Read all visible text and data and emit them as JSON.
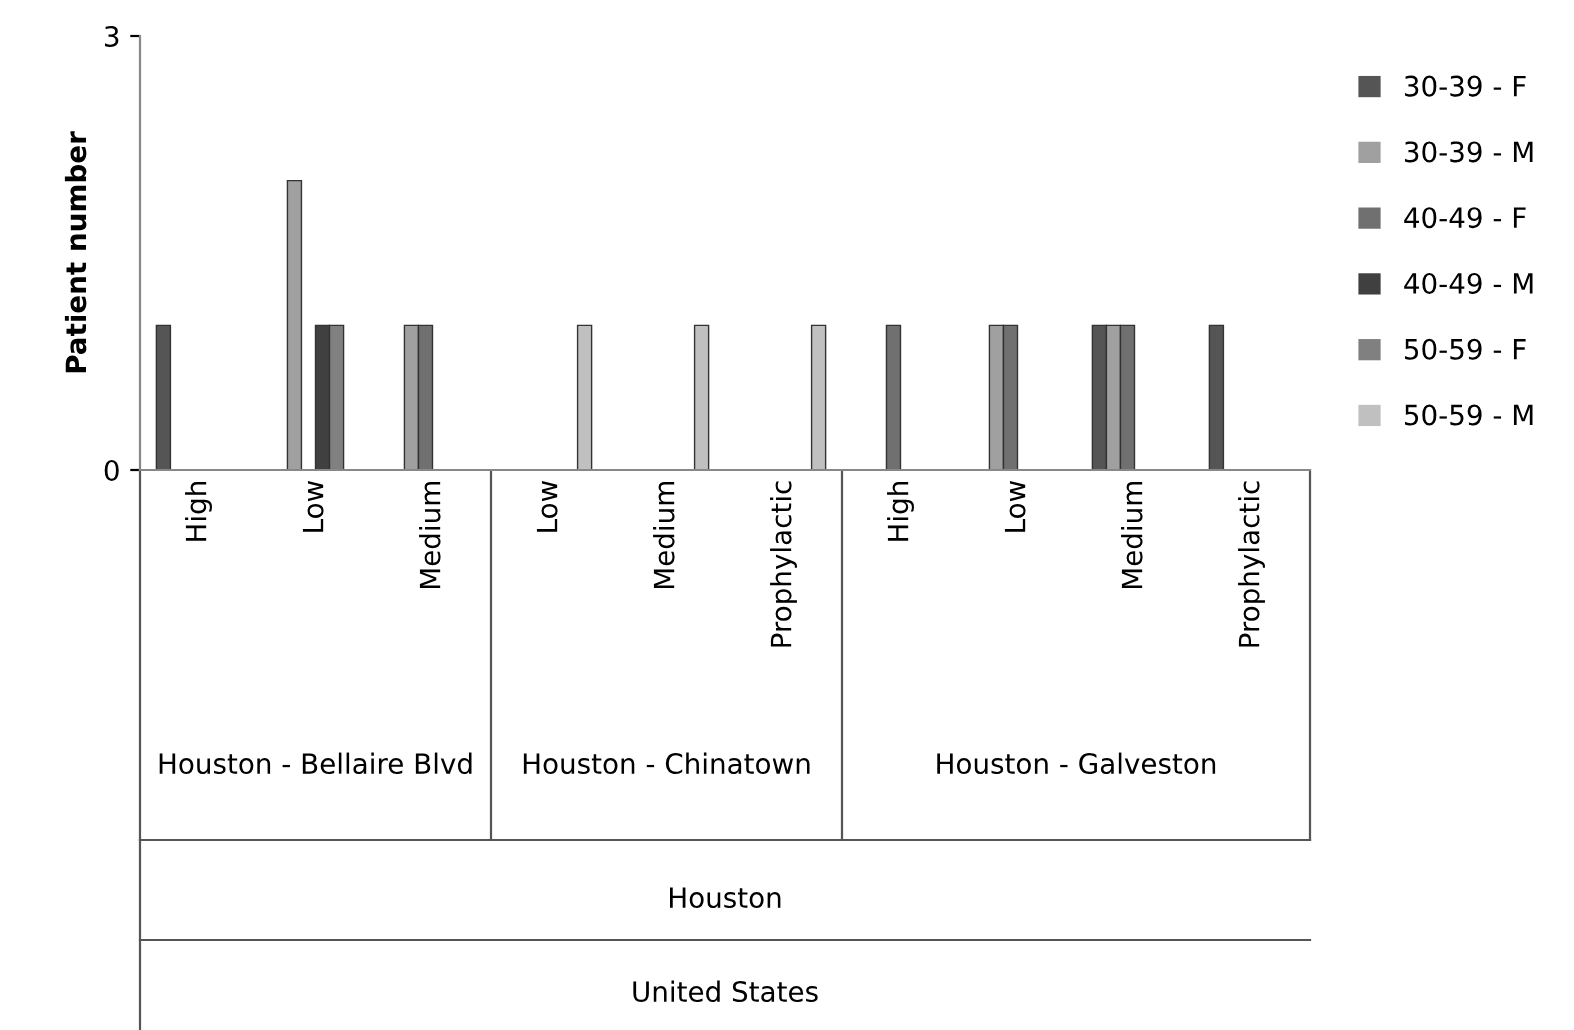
{
  "chart_data": {
    "type": "bar",
    "ylabel": "Patient number",
    "categories": [
      "High",
      "Low",
      "Medium",
      "Low",
      "Medium",
      "Prophylactic",
      "High",
      "Low",
      "Medium",
      "Prophylactic"
    ],
    "series": [
      {
        "name": "30-39 - F",
        "color": "#555555",
        "values": [
          1,
          null,
          null,
          null,
          null,
          null,
          null,
          null,
          1,
          1
        ]
      },
      {
        "name": "30-39 - M",
        "color": "#a0a0a0",
        "values": [
          null,
          2,
          1,
          null,
          null,
          null,
          null,
          1,
          1,
          null
        ]
      },
      {
        "name": "40-49 - F",
        "color": "#707070",
        "values": [
          null,
          null,
          1,
          null,
          null,
          null,
          1,
          1,
          1,
          null
        ]
      },
      {
        "name": "40-49 - M",
        "color": "#404040",
        "values": [
          null,
          1,
          null,
          null,
          null,
          null,
          null,
          null,
          null,
          null
        ]
      },
      {
        "name": "50-59 - F",
        "color": "#808080",
        "values": [
          null,
          1,
          null,
          null,
          null,
          null,
          null,
          null,
          null,
          null
        ]
      },
      {
        "name": "50-59 - M",
        "color": "#c0c0c0",
        "values": [
          null,
          null,
          null,
          1,
          1,
          1,
          null,
          null,
          null,
          null
        ]
      }
    ],
    "ylim": [
      0,
      3
    ],
    "yticks": [
      0,
      3
    ],
    "grid": false,
    "legend": "right",
    "annotations": [
      "Houston - Bellaire Blvd",
      "Houston - Chinatown",
      "Houston - Galveston",
      "Houston",
      "United States"
    ]
  }
}
